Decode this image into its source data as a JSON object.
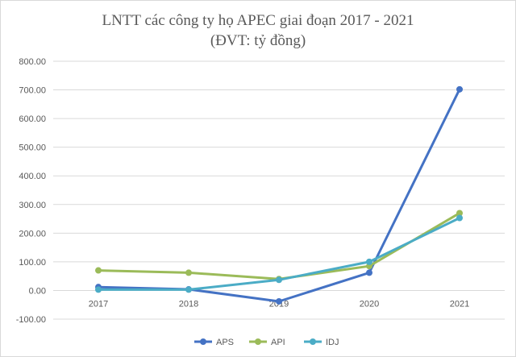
{
  "chart_data": {
    "type": "line",
    "title": "LNTT các công ty họ APEC giai đoạn 2017 - 2021",
    "subtitle": "(ĐVT: tỷ đồng)",
    "xlabel": "",
    "ylabel": "",
    "categories": [
      "2017",
      "2018",
      "2019",
      "2020",
      "2021"
    ],
    "ylim": [
      -100,
      800
    ],
    "yticks": [
      -100,
      0,
      100,
      200,
      300,
      400,
      500,
      600,
      700,
      800
    ],
    "ytick_labels": [
      "-100.00",
      "0.00",
      "100.00",
      "200.00",
      "300.00",
      "400.00",
      "500.00",
      "600.00",
      "700.00",
      "800.00"
    ],
    "grid": true,
    "legend_position": "bottom",
    "series": [
      {
        "name": "APS",
        "color": "#4472c4",
        "values": [
          12,
          4,
          -38,
          62,
          702
        ]
      },
      {
        "name": "API",
        "color": "#9bbb59",
        "values": [
          70,
          62,
          40,
          85,
          270
        ]
      },
      {
        "name": "IDJ",
        "color": "#4bacc6",
        "values": [
          3,
          3,
          37,
          100,
          253
        ]
      }
    ]
  }
}
